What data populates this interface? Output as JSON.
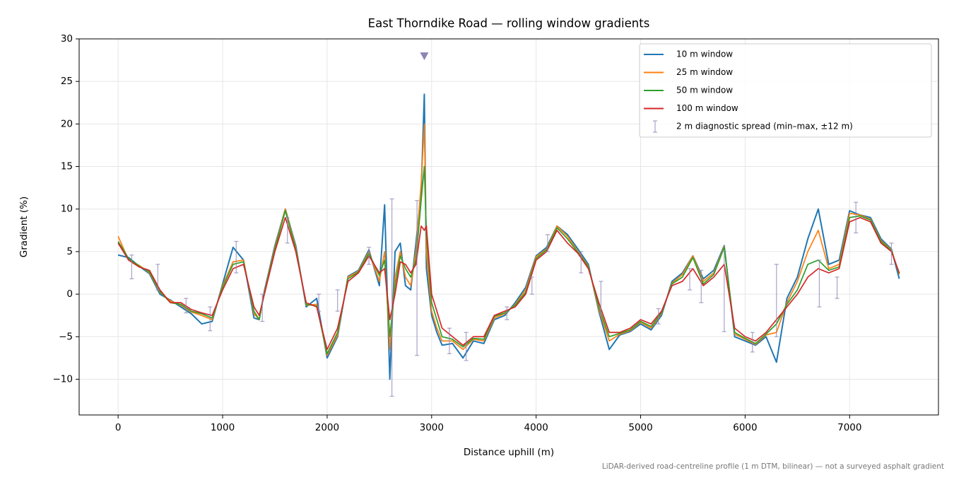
{
  "chart_data": {
    "type": "line",
    "title": "East Thorndike Road — rolling window gradients",
    "xlabel": "Distance uphill (m)",
    "ylabel": "Gradient (%)",
    "footnote": "LiDAR-derived road-centreline profile (1 m DTM, bilinear) — not a surveyed asphalt gradient",
    "xlim": [
      -373,
      7850
    ],
    "ylim": [
      -14.2,
      30
    ],
    "xticks": [
      0,
      1000,
      2000,
      3000,
      4000,
      5000,
      6000,
      7000
    ],
    "yticks": [
      {
        "value": -10,
        "label": "−10"
      },
      {
        "value": -5,
        "label": "−5"
      },
      0,
      5,
      10,
      15,
      20,
      25,
      30
    ],
    "grid": true,
    "legend": "upper right",
    "x": [
      0,
      100,
      200,
      300,
      400,
      500,
      600,
      700,
      800,
      900,
      1000,
      1100,
      1200,
      1300,
      1350,
      1400,
      1500,
      1600,
      1700,
      1800,
      1900,
      2000,
      2100,
      2200,
      2300,
      2400,
      2500,
      2550,
      2600,
      2650,
      2700,
      2750,
      2800,
      2850,
      2900,
      2930,
      2950,
      3000,
      3050,
      3100,
      3200,
      3300,
      3400,
      3500,
      3600,
      3700,
      3800,
      3900,
      4000,
      4100,
      4200,
      4300,
      4400,
      4500,
      4600,
      4700,
      4800,
      4900,
      5000,
      5100,
      5200,
      5300,
      5400,
      5500,
      5600,
      5700,
      5800,
      5900,
      6000,
      6100,
      6200,
      6300,
      6400,
      6500,
      6600,
      6700,
      6800,
      6900,
      7000,
      7100,
      7200,
      7300,
      7400,
      7475
    ],
    "series": [
      {
        "name": "10 m window",
        "color": "#1f77b4",
        "values": [
          4.6,
          4.3,
          3.3,
          2.4,
          0,
          -0.7,
          -1.5,
          -2.3,
          -3.5,
          -3.2,
          1.2,
          5.5,
          4,
          -2.8,
          -3,
          0.4,
          5.7,
          10,
          5.7,
          -1.5,
          -0.5,
          -7.5,
          -5,
          2.1,
          2.8,
          5.2,
          1,
          10.5,
          -10,
          5,
          6,
          1,
          0.5,
          6,
          12,
          23.5,
          3,
          -2.5,
          -4.5,
          -6,
          -5.8,
          -7.5,
          -5.5,
          -5.8,
          -3,
          -2.5,
          -1,
          0.8,
          4.5,
          5.5,
          8,
          7,
          5.3,
          3.5,
          -2,
          -6.5,
          -4.8,
          -4.4,
          -3.5,
          -4.2,
          -2.5,
          1.5,
          2.5,
          4.5,
          1.8,
          2.8,
          5.7,
          -5,
          -5.5,
          -6,
          -5,
          -8,
          -0.5,
          2,
          6.5,
          10,
          3.5,
          4,
          9.8,
          9.3,
          9,
          6.5,
          5.3,
          1.8
        ]
      },
      {
        "name": "25 m window",
        "color": "#ff7f0e",
        "values": [
          6.8,
          4,
          3.4,
          2.5,
          0.2,
          -0.8,
          -1.3,
          -2.1,
          -2.5,
          -3,
          1,
          3.8,
          4,
          -2.3,
          -3,
          0.3,
          5.5,
          10,
          5.5,
          -1.3,
          -1.2,
          -7.2,
          -4.8,
          2,
          2.7,
          5,
          1.5,
          5,
          -6.5,
          2,
          5,
          2,
          1,
          5,
          13,
          20,
          5,
          -2,
          -4,
          -5.5,
          -5.5,
          -6.5,
          -5.3,
          -5.5,
          -2.8,
          -2.3,
          -1.2,
          0.5,
          4.4,
          5.3,
          8,
          6.8,
          5,
          3.3,
          -1.8,
          -5.5,
          -4.7,
          -4.3,
          -3.3,
          -4,
          -2.3,
          1.3,
          2.3,
          4.5,
          1.5,
          2.5,
          5.6,
          -4.7,
          -5.3,
          -5.9,
          -4.8,
          -4.5,
          -1,
          1.5,
          5,
          7.5,
          3,
          3.5,
          9.5,
          9.3,
          8.8,
          6.3,
          5.2,
          2.3
        ]
      },
      {
        "name": "50 m window",
        "color": "#2ca02c",
        "values": [
          6.2,
          4.2,
          3.3,
          2.6,
          0.3,
          -1,
          -1.2,
          -2,
          -2.3,
          -2.8,
          0.8,
          3.5,
          3.8,
          -2,
          -3,
          0.2,
          5.3,
          9.8,
          5.3,
          -1.2,
          -1.4,
          -7,
          -4.5,
          1.8,
          2.6,
          4.8,
          2.2,
          4,
          -5,
          1,
          4.5,
          3,
          2,
          4,
          11,
          15,
          7,
          -1,
          -3,
          -5,
          -5.3,
          -6.2,
          -5.2,
          -5.3,
          -2.6,
          -2.2,
          -1.3,
          0.2,
          4.2,
          5.2,
          7.8,
          6.5,
          4.9,
          3.2,
          -1.5,
          -5,
          -4.6,
          -4.2,
          -3.2,
          -3.8,
          -2.2,
          1.2,
          2,
          4.3,
          1.2,
          2.3,
          5.5,
          -4.5,
          -5.2,
          -5.8,
          -4.7,
          -3.5,
          -1.2,
          0.5,
          3.5,
          4,
          2.8,
          3.2,
          9,
          9.2,
          8.7,
          6.2,
          5.1,
          2.4
        ]
      },
      {
        "name": "100 m window",
        "color": "#d62728",
        "values": [
          6,
          4,
          3.2,
          2.8,
          0.5,
          -1,
          -1,
          -1.8,
          -2.2,
          -2.5,
          0.5,
          3,
          3.5,
          -1.5,
          -2.5,
          0,
          5,
          9,
          5,
          -1,
          -1.5,
          -6.5,
          -4,
          1.5,
          2.5,
          4.5,
          2.5,
          3,
          -3,
          0,
          3.8,
          3.5,
          2.5,
          3.5,
          8,
          7.5,
          8,
          0,
          -2,
          -4,
          -5,
          -6,
          -5,
          -5,
          -2.5,
          -2,
          -1.5,
          0,
          4,
          5,
          7.5,
          6,
          4.8,
          3,
          -1,
          -4.5,
          -4.5,
          -4,
          -3,
          -3.5,
          -2,
          1,
          1.5,
          3,
          1,
          2,
          3.5,
          -4,
          -5,
          -5.5,
          -4.5,
          -3,
          -1.5,
          0,
          2,
          3,
          2.5,
          3,
          8.5,
          9,
          8.5,
          6,
          5,
          2.5
        ]
      }
    ],
    "spread": {
      "name": "2 m diagnostic spread (min–max, ±12 m)",
      "color": "#8e83b5",
      "x": [
        130,
        380,
        650,
        880,
        1130,
        1380,
        1620,
        1920,
        2100,
        2400,
        2620,
        2860,
        3170,
        3330,
        3720,
        3960,
        4110,
        4430,
        4620,
        5170,
        5470,
        5580,
        5800,
        6070,
        6300,
        6710,
        6880,
        7060,
        7400
      ],
      "low": [
        1.8,
        0.5,
        -2.2,
        -4.3,
        2.5,
        -3.2,
        6,
        -2,
        -2,
        3.5,
        -12,
        -7.2,
        -7,
        -7.8,
        -3,
        0,
        5,
        2.5,
        -2.5,
        -3.5,
        0.5,
        -1,
        -4.4,
        -6.8,
        -5,
        -1.5,
        -0.5,
        7.2,
        3.5
      ],
      "high": [
        4.6,
        3.5,
        -0.5,
        -1.5,
        6.2,
        0,
        9,
        0,
        0.5,
        5.5,
        11.2,
        11,
        -4,
        -4.5,
        -1.5,
        2,
        7,
        5,
        1.5,
        -1.7,
        3,
        2.8,
        5,
        -4.5,
        3.5,
        4,
        2,
        10.8,
        6
      ]
    },
    "offscale_marker": {
      "x": 2930,
      "y": 28
    }
  }
}
